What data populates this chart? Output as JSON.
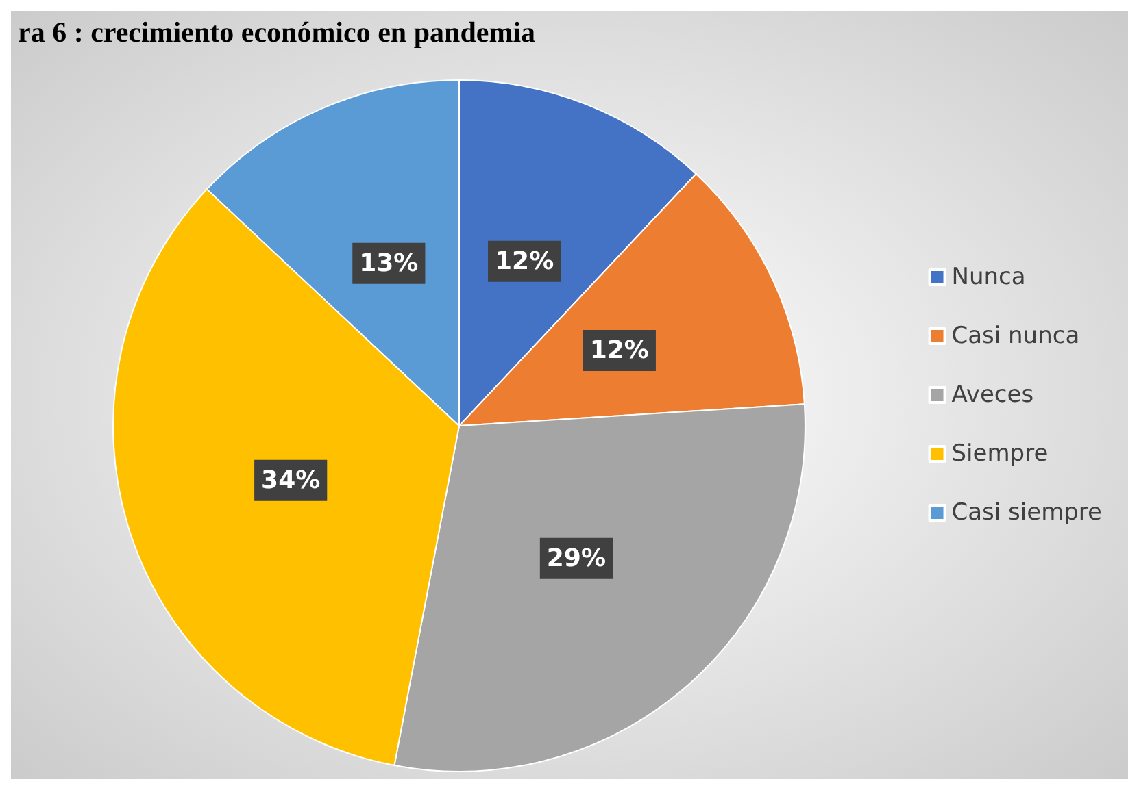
{
  "chart_data": {
    "type": "pie",
    "title": "ra 6 : crecimiento económico en pandemia",
    "categories": [
      "Nunca",
      "Casi nunca",
      "Aveces",
      "Siempre",
      "Casi siempre"
    ],
    "values": [
      12,
      12,
      29,
      34,
      13
    ],
    "colors": [
      "#4472c4",
      "#ed7d31",
      "#a5a5a5",
      "#ffc000",
      "#5b9bd5"
    ],
    "value_labels": [
      "12%",
      "12%",
      "29%",
      "34%",
      "13%"
    ],
    "legend": "right"
  }
}
